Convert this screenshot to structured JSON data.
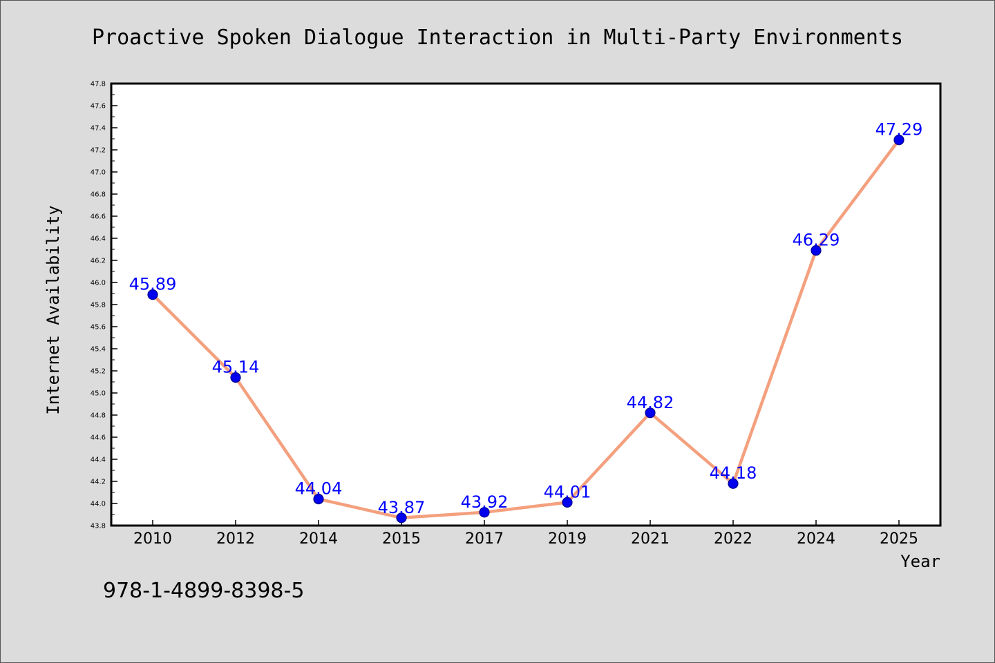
{
  "chart_data": {
    "type": "line",
    "title": "Proactive Spoken Dialogue Interaction in Multi-Party Environments",
    "xlabel": "Year",
    "ylabel": "Internet Availability",
    "categories": [
      "2010",
      "2012",
      "2014",
      "2015",
      "2017",
      "2019",
      "2021",
      "2022",
      "2024",
      "2025"
    ],
    "values": [
      45.89,
      45.14,
      44.04,
      43.87,
      43.92,
      44.01,
      44.82,
      44.18,
      46.29,
      47.29
    ],
    "data_labels": [
      "45.89",
      "45.14",
      "44.04",
      "43.87",
      "43.92",
      "44.01",
      "44.82",
      "44.18",
      "46.29",
      "47.29"
    ],
    "ylim": [
      43.8,
      47.8
    ],
    "yticks": [
      "43.8",
      "44.0",
      "44.2",
      "44.4",
      "44.6",
      "44.8",
      "45.0",
      "45.2",
      "45.4",
      "45.6",
      "45.8",
      "46.0",
      "46.2",
      "46.4",
      "46.6",
      "46.8",
      "47.0",
      "47.2",
      "47.4",
      "47.6",
      "47.8"
    ],
    "grid": false,
    "legend": "none",
    "colors": {
      "line": "#f4a07e",
      "marker": "#0000ee",
      "marker_edge": "#00008b",
      "data_label": "#0000ff",
      "background": "#dcdcdc",
      "plot_background": "#ffffff",
      "axes": "#000000"
    }
  },
  "footer": {
    "text": "978-1-4899-8398-5"
  }
}
